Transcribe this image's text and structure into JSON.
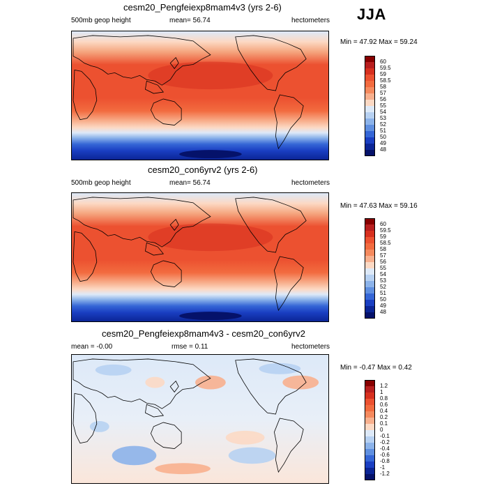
{
  "season": "JJA",
  "panels": [
    {
      "title": "cesm20_Pengfeiexp8mam4v3 (yrs 2-6)",
      "left_label": "500mb geop height",
      "center_label": "mean=  56.74",
      "right_label": "hectometers",
      "minmax": "Min =  47.92 Max =  59.24",
      "kind": "field",
      "colorbar": {
        "labels": [
          "60",
          "59.5",
          "59",
          "58.5",
          "58",
          "57",
          "56",
          "55",
          "54",
          "53",
          "52",
          "51",
          "50",
          "49",
          "48"
        ],
        "colors": [
          "#870000",
          "#b81e1e",
          "#d7301f",
          "#ec5130",
          "#f26b3f",
          "#f58a5e",
          "#f8b08e",
          "#fcd9c4",
          "#dde9f8",
          "#b7d1f2",
          "#8cb3ea",
          "#5f8fe0",
          "#3566d6",
          "#1a3fc2",
          "#0b2596",
          "#05126a"
        ]
      }
    },
    {
      "title": "cesm20_con6yrv2 (yrs 2-6)",
      "left_label": "500mb geop height",
      "center_label": "mean=  56.74",
      "right_label": "hectometers",
      "minmax": "Min =  47.63 Max =  59.16",
      "kind": "field",
      "colorbar": {
        "labels": [
          "60",
          "59.5",
          "59",
          "58.5",
          "58",
          "57",
          "56",
          "55",
          "54",
          "53",
          "52",
          "51",
          "50",
          "49",
          "48"
        ],
        "colors": [
          "#870000",
          "#b81e1e",
          "#d7301f",
          "#ec5130",
          "#f26b3f",
          "#f58a5e",
          "#f8b08e",
          "#fcd9c4",
          "#dde9f8",
          "#b7d1f2",
          "#8cb3ea",
          "#5f8fe0",
          "#3566d6",
          "#1a3fc2",
          "#0b2596",
          "#05126a"
        ]
      }
    },
    {
      "title": "cesm20_Pengfeiexp8mam4v3 - cesm20_con6yrv2",
      "left_label": "mean =  -0.00",
      "center_label": "rmse =   0.11",
      "right_label": "hectometers",
      "minmax": "Min =  -0.47 Max =   0.42",
      "kind": "diff",
      "colorbar": {
        "labels": [
          "1.2",
          "1",
          "0.8",
          "0.6",
          "0.4",
          "0.2",
          "0.1",
          "0",
          "-0.1",
          "-0.2",
          "-0.4",
          "-0.6",
          "-0.8",
          "-1",
          "-1.2"
        ],
        "colors": [
          "#870000",
          "#b81e1e",
          "#d7301f",
          "#ec5130",
          "#f26b3f",
          "#f58a5e",
          "#f8b08e",
          "#fcd9c4",
          "#dde9f8",
          "#b7d1f2",
          "#8cb3ea",
          "#5f8fe0",
          "#3566d6",
          "#1a3fc2",
          "#0b2596",
          "#05126a"
        ]
      }
    }
  ]
}
